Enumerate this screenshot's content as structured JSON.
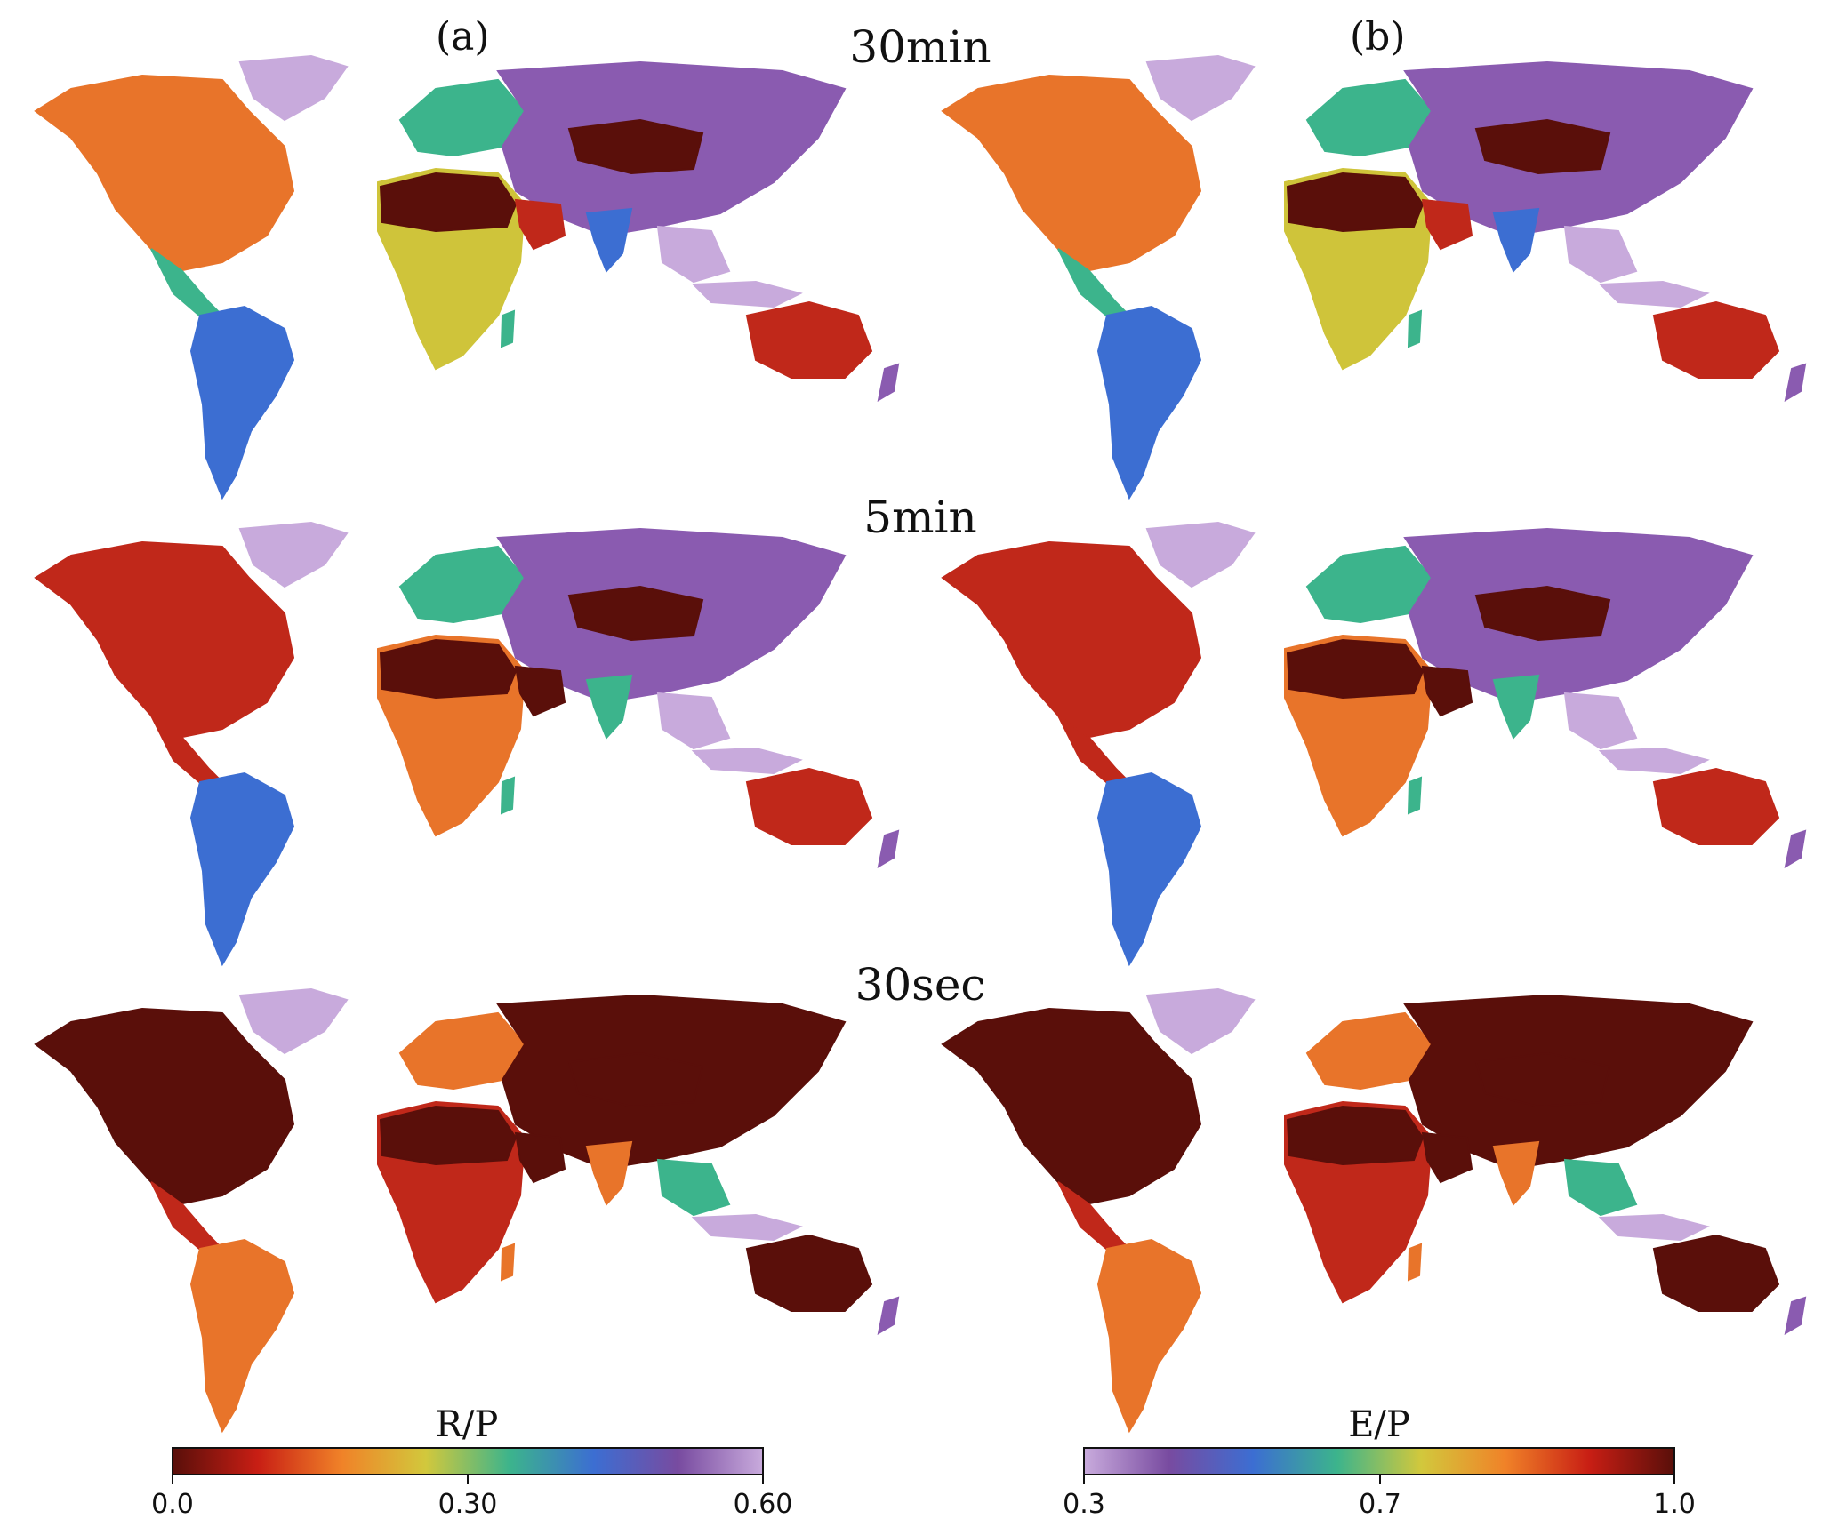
{
  "panel_labels": {
    "a": "(a)",
    "b": "(b)"
  },
  "rows": [
    {
      "resolution": "30min"
    },
    {
      "resolution": "5min"
    },
    {
      "resolution": "30sec"
    }
  ],
  "colorbars": {
    "left": {
      "title": "R/P",
      "ticks": [
        "0.0",
        "0.30",
        "0.60"
      ],
      "gradient": [
        "#5a0f0a",
        "#c81e14",
        "#f08228",
        "#d2c83c",
        "#3cb48c",
        "#3c6ed2",
        "#784ba0",
        "#c8aadc"
      ]
    },
    "right": {
      "title": "E/P",
      "ticks": [
        "0.3",
        "0.7",
        "1.0"
      ],
      "gradient": [
        "#c8aadc",
        "#784ba0",
        "#3c6ed2",
        "#3cb48c",
        "#d2c83c",
        "#f08228",
        "#c81e14",
        "#5a0f0a"
      ]
    }
  },
  "colors": {
    "dark": "#5a0f0a",
    "red": "#c0281a",
    "orange": "#e8742a",
    "yellow": "#cfc43a",
    "green": "#3cb48c",
    "blue": "#3c6ed2",
    "purple": "#8a5bb0",
    "lavender": "#c8aadc"
  }
}
